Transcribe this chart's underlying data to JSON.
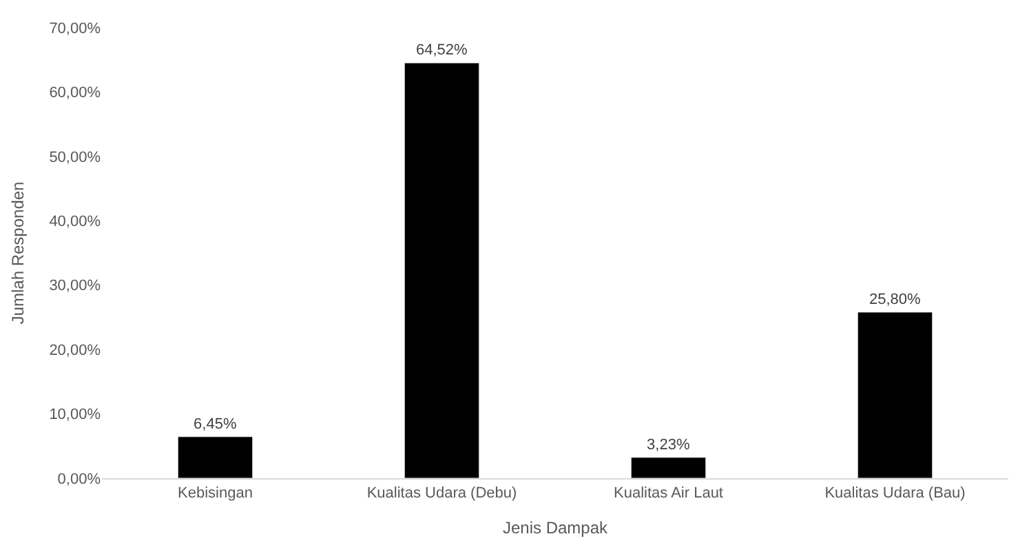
{
  "chart_data": {
    "type": "bar",
    "xlabel": "Jenis Dampak",
    "ylabel": "Jumlah Responden",
    "categories": [
      "Kebisingan",
      "Kualitas Udara (Debu)",
      "Kualitas Air Laut",
      "Kualitas Udara (Bau)"
    ],
    "values": [
      6.45,
      64.52,
      3.23,
      25.8
    ],
    "value_labels": [
      "6,45%",
      "64,52%",
      "3,23%",
      "25,80%"
    ],
    "color": "#000000",
    "ylim": [
      0,
      70
    ],
    "yticks": [
      {
        "value": 0,
        "label": "0,00%"
      },
      {
        "value": 10,
        "label": "10,00%"
      },
      {
        "value": 20,
        "label": "20,00%"
      },
      {
        "value": 30,
        "label": "30,00%"
      },
      {
        "value": 40,
        "label": "40,00%"
      },
      {
        "value": 50,
        "label": "50,00%"
      },
      {
        "value": 60,
        "label": "60,00%"
      },
      {
        "value": 70,
        "label": "70,00%"
      }
    ],
    "grid": false,
    "legend": false
  }
}
